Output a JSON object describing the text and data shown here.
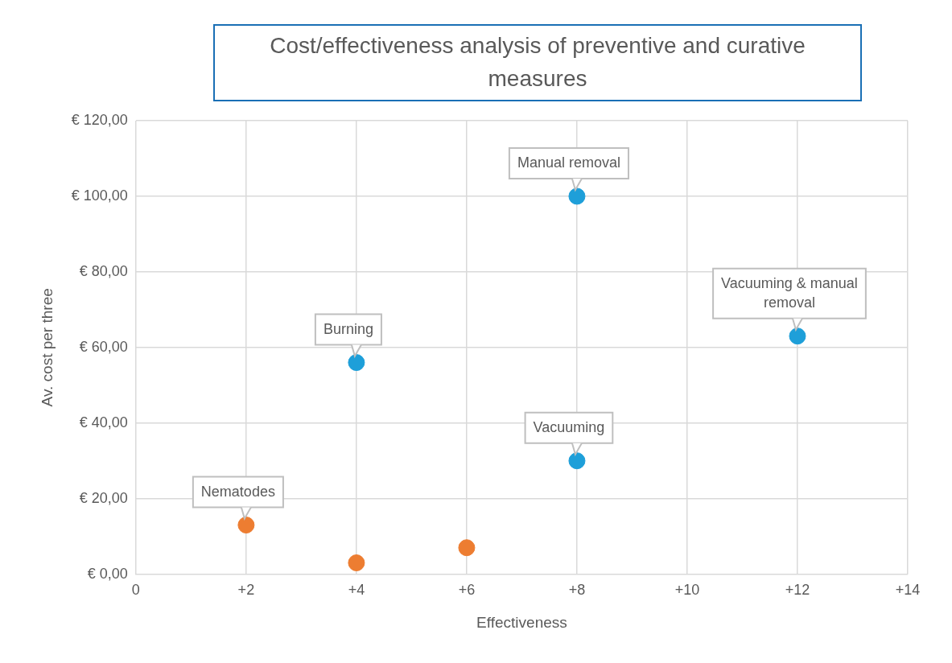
{
  "chart_data": {
    "type": "scatter",
    "title": "Cost/effectiveness analysis of preventive and curative measures",
    "xlabel": "Effectiveness",
    "ylabel": "Av. cost per three",
    "series": [
      {
        "x": [
          2,
          4,
          6,
          4,
          8,
          8,
          12
        ],
        "values": [
          13,
          3,
          7,
          56,
          30,
          100,
          63
        ],
        "colors": [
          "#ed7d31",
          "#ed7d31",
          "#ed7d31",
          "#1e9fd9",
          "#1e9fd9",
          "#1e9fd9",
          "#1e9fd9"
        ]
      }
    ],
    "xlim": [
      0,
      14
    ],
    "xticks": [
      0,
      {
        "value": 2,
        "label": "+2"
      },
      {
        "value": 4,
        "label": "+4"
      },
      {
        "value": 6,
        "label": "+6"
      },
      {
        "value": 8,
        "label": "+8"
      },
      {
        "value": 10,
        "label": "+10"
      },
      {
        "value": 12,
        "label": "+12"
      },
      {
        "value": 14,
        "label": "+14"
      }
    ],
    "ylim": [
      0,
      120
    ],
    "yticks": [
      {
        "value": 0,
        "label": "€ 0,00"
      },
      {
        "value": 20,
        "label": "€ 20,00"
      },
      {
        "value": 40,
        "label": "€ 40,00"
      },
      {
        "value": 60,
        "label": "€ 60,00"
      },
      {
        "value": 80,
        "label": "€ 80,00"
      },
      {
        "value": 100,
        "label": "€ 100,00"
      },
      {
        "value": 120,
        "label": "€ 120,00"
      }
    ],
    "annotations": [
      {
        "text": "Nematodes",
        "x": 2,
        "y": 13
      },
      {
        "text": "Burning",
        "x": 4,
        "y": 56
      },
      {
        "text": "Vacuuming",
        "x": 8,
        "y": 30
      },
      {
        "text": "Manual removal",
        "x": 8,
        "y": 100
      },
      {
        "text": "Vacuuming & manual removal",
        "x": 12,
        "y": 63
      }
    ],
    "grid": true,
    "legend": false,
    "marker": "circle"
  }
}
